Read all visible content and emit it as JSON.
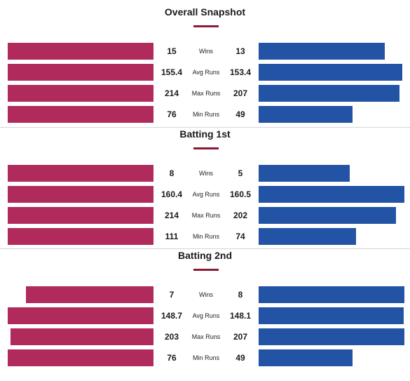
{
  "colors": {
    "team1": "#b02a5b",
    "team2": "#2353a4",
    "accent": "#8b1a35"
  },
  "chart_data": [
    {
      "type": "bar",
      "title": "Overall Snapshot",
      "categories": [
        "Wins",
        "Avg Runs",
        "Max Runs",
        "Min Runs"
      ],
      "series": [
        {
          "values": [
            "15",
            "155.4",
            "214",
            "76"
          ]
        },
        {
          "values": [
            "13",
            "153.4",
            "207",
            "49"
          ]
        }
      ]
    },
    {
      "type": "bar",
      "title": "Batting 1st",
      "categories": [
        "Wins",
        "Avg Runs",
        "Max Runs",
        "Min Runs"
      ],
      "series": [
        {
          "values": [
            "8",
            "160.4",
            "214",
            "111"
          ]
        },
        {
          "values": [
            "5",
            "160.5",
            "202",
            "74"
          ]
        }
      ]
    },
    {
      "type": "bar",
      "title": "Batting 2nd",
      "categories": [
        "Wins",
        "Avg Runs",
        "Max Runs",
        "Min Runs"
      ],
      "series": [
        {
          "values": [
            "7",
            "148.7",
            "203",
            "76"
          ]
        },
        {
          "values": [
            "8",
            "148.1",
            "207",
            "49"
          ]
        }
      ]
    }
  ]
}
